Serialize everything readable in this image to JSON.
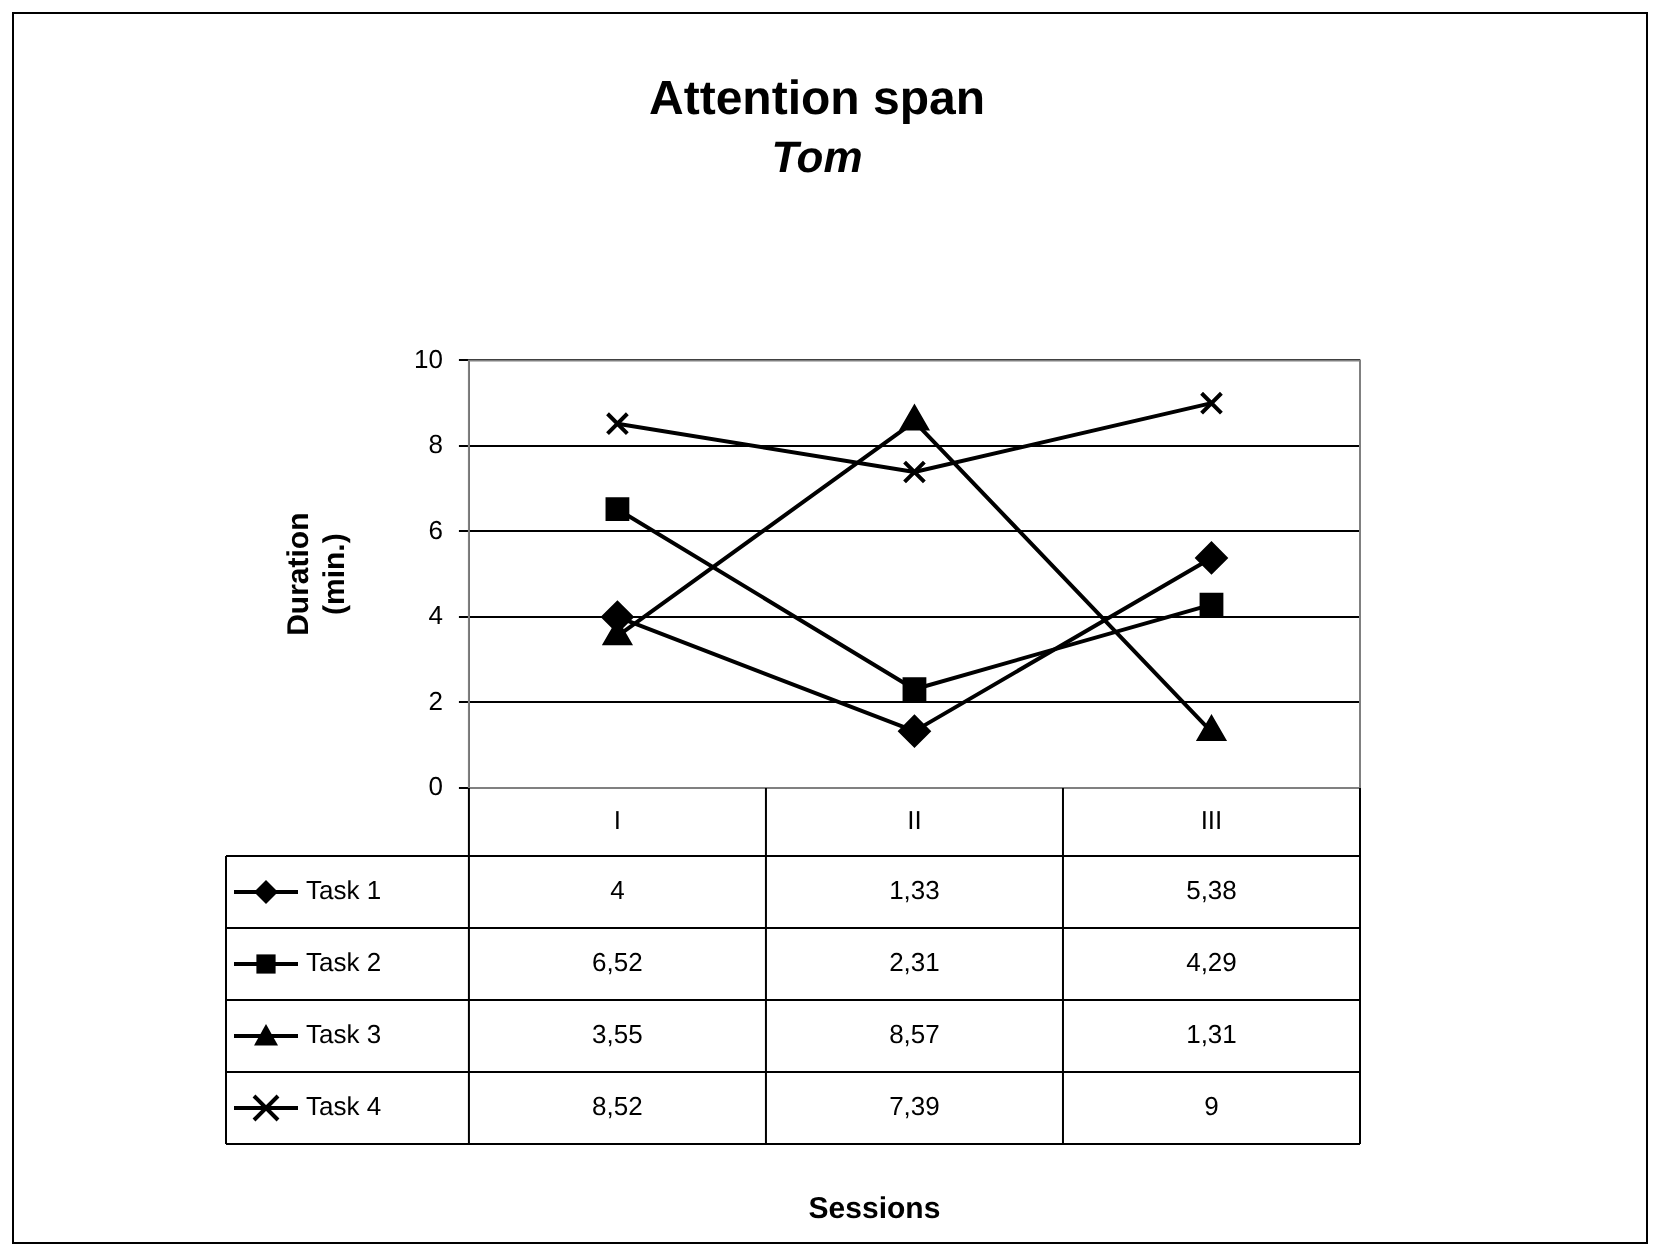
{
  "chart_data": {
    "type": "line",
    "title": "Attention span",
    "subtitle": "Tom",
    "annotations": [
      "Sessions"
    ],
    "ylabel": "Duration (min.)",
    "categories": [
      "I",
      "II",
      "III"
    ],
    "series": [
      {
        "name": "Task 1",
        "color": "#000000",
        "marker": "diamond",
        "values": [
          4,
          1.33,
          5.38
        ],
        "value_labels": [
          "4",
          "1,33",
          "5,38"
        ]
      },
      {
        "name": "Task 2",
        "color": "#000000",
        "marker": "square",
        "values": [
          6.52,
          2.31,
          4.29
        ],
        "value_labels": [
          "6,52",
          "2,31",
          "4,29"
        ]
      },
      {
        "name": "Task 3",
        "color": "#000000",
        "marker": "triangle",
        "values": [
          3.55,
          8.57,
          1.31
        ],
        "value_labels": [
          "3,55",
          "8,57",
          "1,31"
        ]
      },
      {
        "name": "Task 4",
        "color": "#000000",
        "marker": "cross",
        "values": [
          8.52,
          7.39,
          9
        ],
        "value_labels": [
          "8,52",
          "7,39",
          "9"
        ]
      }
    ],
    "ylim": [
      0,
      10
    ],
    "yticks": [
      0,
      2,
      4,
      6,
      8,
      10
    ],
    "grid": "y",
    "legend": "bottom",
    "line_style": "solid"
  }
}
